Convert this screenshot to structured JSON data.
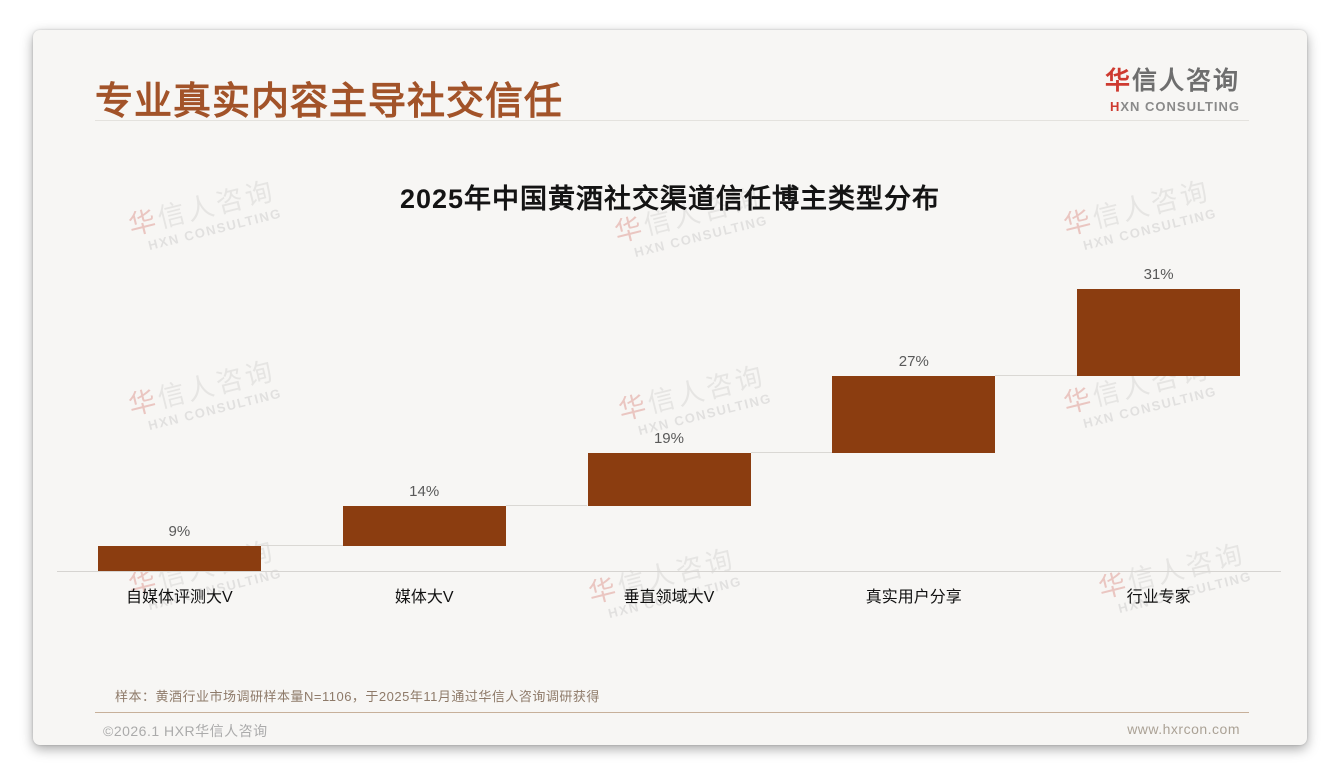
{
  "header": {
    "title": "专业真实内容主导社交信任",
    "logo": {
      "cn_first": "华",
      "cn_rest": "信人咨询",
      "en_first": "H",
      "en_rest": "XN CONSULTING"
    }
  },
  "chart_data": {
    "type": "bar",
    "subtype": "ascending-waterfall",
    "title": "2025年中国黄酒社交渠道信任博主类型分布",
    "categories": [
      "自媒体评测大V",
      "媒体大V",
      "垂直领域大V",
      "真实用户分享",
      "行业专家"
    ],
    "values": [
      9,
      14,
      19,
      27,
      31
    ],
    "value_labels": [
      "9%",
      "14%",
      "19%",
      "27%",
      "31%"
    ],
    "unit": "%",
    "ylim": [
      0,
      100
    ],
    "grid": false,
    "legend": false,
    "bar_color": "#8B3D10",
    "value_label_color": "#595959",
    "connector_color": "#DAD8D4"
  },
  "footnote": "样本：黄酒行业市场调研样本量N=1106，于2025年11月通过华信人咨询调研获得",
  "footer": {
    "left": "©2026.1 HXR华信人咨询",
    "right": "www.hxrcon.com"
  },
  "watermark": {
    "cn_first": "华",
    "cn_rest": "信人咨询",
    "en": "HXN CONSULTING"
  },
  "colors": {
    "accent_brown": "#8B3D10",
    "title_brown": "#A25329",
    "logo_red": "#CE3A30",
    "slide_background": "#F7F6F4"
  }
}
